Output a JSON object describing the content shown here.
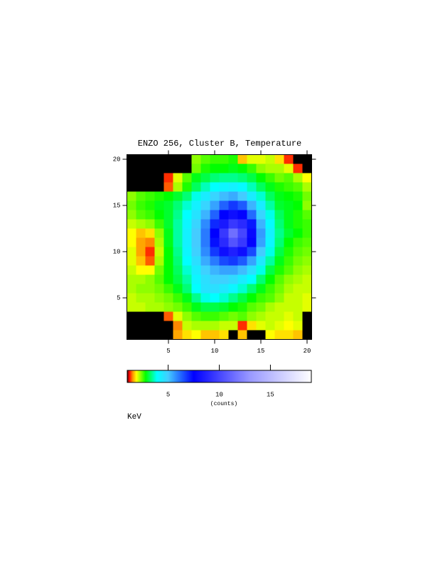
{
  "chart_data": {
    "type": "heatmap",
    "title": "ENZO 256, Cluster B, Temperature",
    "x": [
      1,
      2,
      3,
      4,
      5,
      6,
      7,
      8,
      9,
      10,
      11,
      12,
      13,
      14,
      15,
      16,
      17,
      18,
      19,
      20
    ],
    "y": [
      20,
      19,
      18,
      17,
      16,
      15,
      14,
      13,
      12,
      11,
      10,
      9,
      8,
      7,
      6,
      5,
      4,
      3,
      2,
      1
    ],
    "z": [
      [
        null,
        null,
        null,
        null,
        null,
        null,
        null,
        2.3,
        2.5,
        2.6,
        2.6,
        2.7,
        1.7,
        2.0,
        2.0,
        2.1,
        1.8,
        1.3,
        null,
        null
      ],
      [
        null,
        null,
        null,
        null,
        null,
        null,
        null,
        2.4,
        2.7,
        2.8,
        2.8,
        2.9,
        2.8,
        2.6,
        2.3,
        2.2,
        2.2,
        2.0,
        1.3,
        null
      ],
      [
        null,
        null,
        null,
        null,
        1.3,
        2.0,
        2.5,
        2.9,
        3.1,
        3.3,
        3.4,
        3.4,
        3.3,
        3.1,
        2.8,
        2.6,
        2.4,
        2.5,
        2.2,
        1.9
      ],
      [
        null,
        null,
        null,
        null,
        1.4,
        2.2,
        2.7,
        3.2,
        3.6,
        3.9,
        4.1,
        4.2,
        4.0,
        3.6,
        3.2,
        2.9,
        2.7,
        2.6,
        2.5,
        2.2
      ],
      [
        2.3,
        2.5,
        2.6,
        2.7,
        2.8,
        3.0,
        3.3,
        3.8,
        4.3,
        4.8,
        5.2,
        5.4,
        5.0,
        4.3,
        3.7,
        3.2,
        2.9,
        2.8,
        2.7,
        2.4
      ],
      [
        2.4,
        2.6,
        2.7,
        2.9,
        3.0,
        3.3,
        3.7,
        4.2,
        4.8,
        5.5,
        6.3,
        6.8,
        6.4,
        5.3,
        4.3,
        3.5,
        3.0,
        2.9,
        2.8,
        2.3
      ],
      [
        2.3,
        2.5,
        2.6,
        2.8,
        3.0,
        3.4,
        3.9,
        4.5,
        5.3,
        6.3,
        7.5,
        8.0,
        7.6,
        6.2,
        4.8,
        3.8,
        3.2,
        2.9,
        2.7,
        2.5
      ],
      [
        2.1,
        2.2,
        2.3,
        2.6,
        3.0,
        3.5,
        4.1,
        4.8,
        5.8,
        7.0,
        8.4,
        9.5,
        9.0,
        7.2,
        5.3,
        4.0,
        3.3,
        2.9,
        2.7,
        2.6
      ],
      [
        1.9,
        1.7,
        1.8,
        2.3,
        2.9,
        3.5,
        4.2,
        5.0,
        6.0,
        7.5,
        9.5,
        11.5,
        10.0,
        7.8,
        5.6,
        4.2,
        3.4,
        3.0,
        2.8,
        2.6
      ],
      [
        1.9,
        1.6,
        1.5,
        2.2,
        2.9,
        3.5,
        4.2,
        5.0,
        6.0,
        7.3,
        9.0,
        10.5,
        9.5,
        7.6,
        5.5,
        4.1,
        3.3,
        2.8,
        2.6,
        2.5
      ],
      [
        2.0,
        1.6,
        1.3,
        2.1,
        2.8,
        3.4,
        4.1,
        4.9,
        5.8,
        6.8,
        8.0,
        8.6,
        8.0,
        6.6,
        5.0,
        3.8,
        3.1,
        2.7,
        2.5,
        2.4
      ],
      [
        2.0,
        1.7,
        1.4,
        2.2,
        2.8,
        3.3,
        3.9,
        4.6,
        5.4,
        6.0,
        6.6,
        6.8,
        6.4,
        5.5,
        4.4,
        3.5,
        2.9,
        2.6,
        2.4,
        2.3
      ],
      [
        2.1,
        1.9,
        1.9,
        2.4,
        2.8,
        3.2,
        3.7,
        4.3,
        4.9,
        5.3,
        5.5,
        5.5,
        5.2,
        4.6,
        3.8,
        3.1,
        2.7,
        2.5,
        2.3,
        2.2
      ],
      [
        2.2,
        2.2,
        2.3,
        2.5,
        2.8,
        3.1,
        3.5,
        4.1,
        4.6,
        4.9,
        4.9,
        4.7,
        4.3,
        3.9,
        3.3,
        2.8,
        2.5,
        2.3,
        2.2,
        2.1
      ],
      [
        2.2,
        2.3,
        2.3,
        2.4,
        2.6,
        2.9,
        3.3,
        3.9,
        4.5,
        4.6,
        4.4,
        4.1,
        3.7,
        3.3,
        2.9,
        2.6,
        2.4,
        2.2,
        2.1,
        2.1
      ],
      [
        2.1,
        2.2,
        2.2,
        2.3,
        2.4,
        2.6,
        2.9,
        3.4,
        3.8,
        3.9,
        3.7,
        3.4,
        3.1,
        2.8,
        2.6,
        2.5,
        2.3,
        2.1,
        2.1,
        2.0
      ],
      [
        2.1,
        2.1,
        2.2,
        2.2,
        2.3,
        2.4,
        2.6,
        2.9,
        3.1,
        3.1,
        3.0,
        2.8,
        2.7,
        2.5,
        2.4,
        2.2,
        2.1,
        2.1,
        2.1,
        2.0
      ],
      [
        null,
        null,
        null,
        null,
        1.4,
        2.0,
        2.3,
        2.5,
        2.6,
        2.6,
        2.5,
        2.4,
        2.5,
        2.3,
        2.2,
        2.1,
        2.1,
        2.0,
        2.1,
        null
      ],
      [
        null,
        null,
        null,
        null,
        null,
        1.5,
        2.1,
        2.2,
        2.2,
        2.2,
        2.1,
        2.1,
        1.3,
        1.8,
        2.0,
        2.1,
        2.0,
        1.9,
        2.0,
        null
      ],
      [
        null,
        null,
        null,
        null,
        null,
        1.6,
        1.8,
        1.9,
        1.7,
        1.7,
        1.8,
        null,
        1.7,
        null,
        null,
        1.9,
        1.8,
        1.8,
        1.7,
        null
      ]
    ],
    "xlim": [
      0.5,
      20.5
    ],
    "ylim": [
      0.5,
      20.5
    ],
    "xticks": [
      5,
      10,
      15,
      20
    ],
    "yticks": [
      5,
      10,
      15,
      20
    ],
    "missing_color": "#000000",
    "colorscale": [
      [
        1,
        "#300000"
      ],
      [
        1.2,
        "#ff0000"
      ],
      [
        1.5,
        "#ff8800"
      ],
      [
        1.9,
        "#ffff00"
      ],
      [
        2.8,
        "#00ff00"
      ],
      [
        3.9,
        "#00ffff"
      ],
      [
        5,
        "#44ccff"
      ],
      [
        7.5,
        "#0000ff"
      ],
      [
        13,
        "#9999ff"
      ],
      [
        19,
        "#ffffff"
      ]
    ],
    "colorbar": {
      "lim": [
        1,
        19
      ],
      "ticks": [
        5,
        10,
        15
      ],
      "label": "(counts)"
    },
    "annotation": "KeV"
  }
}
